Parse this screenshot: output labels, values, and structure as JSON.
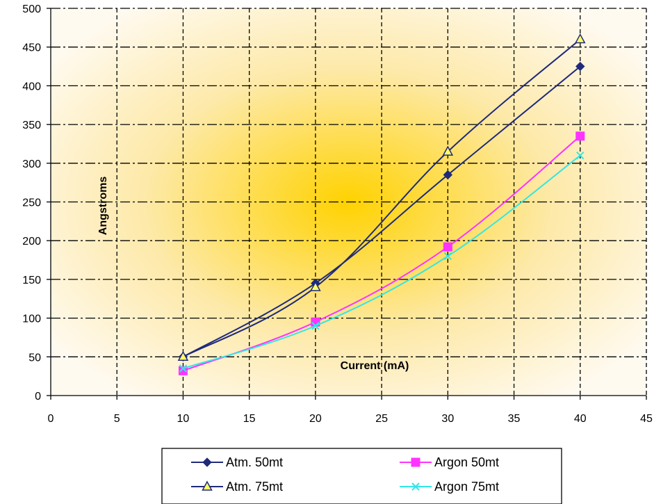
{
  "chart_data": {
    "type": "line",
    "title": "",
    "xlabel": "Current (mA)",
    "ylabel": "Angstroms",
    "xlim": [
      0,
      45
    ],
    "ylim": [
      0,
      500
    ],
    "x_ticks": [
      0,
      5,
      10,
      15,
      20,
      25,
      30,
      35,
      40,
      45
    ],
    "y_ticks": [
      0,
      50,
      100,
      150,
      200,
      250,
      300,
      350,
      400,
      450,
      500
    ],
    "grid": true,
    "grid_style": "dash-dot",
    "background": "radial gold gradient",
    "legend_position": "bottom",
    "series": [
      {
        "name": "Atm. 50mt",
        "color": "#1f2a7a",
        "marker": "diamond",
        "x": [
          10,
          20,
          30,
          40
        ],
        "y": [
          50,
          145,
          285,
          425
        ]
      },
      {
        "name": "Argon 50mt",
        "color": "#ff33ff",
        "marker": "square",
        "x": [
          10,
          20,
          30,
          40
        ],
        "y": [
          32,
          95,
          192,
          335
        ]
      },
      {
        "name": "Atm. 75mt",
        "color": "#1f2a7a",
        "marker": "triangle",
        "x": [
          10,
          20,
          30,
          40
        ],
        "y": [
          50,
          140,
          315,
          460
        ]
      },
      {
        "name": "Argon 75mt",
        "color": "#33e6e6",
        "marker": "x",
        "x": [
          10,
          20,
          30,
          40
        ],
        "y": [
          35,
          90,
          180,
          310
        ]
      }
    ]
  }
}
